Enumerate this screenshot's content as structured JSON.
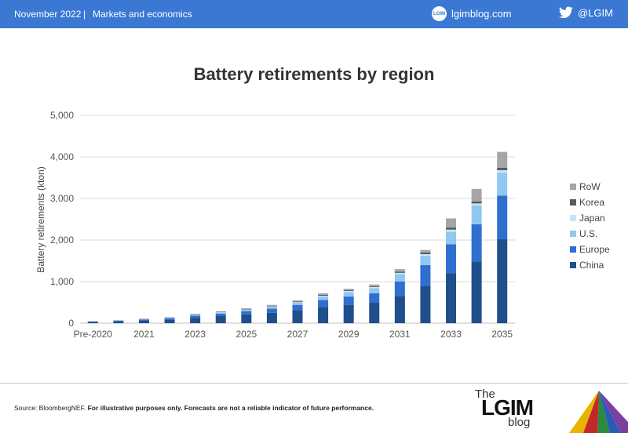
{
  "header": {
    "date": "November 2022",
    "separator": "|",
    "section": "Markets and economics",
    "blog_icon_text": "LGIM",
    "blog_url": "lgimblog.com",
    "twitter_handle": "@LGIM"
  },
  "footer": {
    "source": "Source: BloombergNEF.",
    "disclaimer": "For illustrative purposes only. Forecasts are not a reliable indicator of future performance."
  },
  "logo": {
    "the": "The",
    "lgim": "LGIM",
    "blog": "blog"
  },
  "colors": {
    "header_bg": "#3a78d4",
    "China": "#1f4e8c",
    "Europe": "#2e6fd0",
    "U.S.": "#8fc8f0",
    "Japan": "#c9e6f8",
    "Korea": "#595959",
    "RoW": "#a6a6a6"
  },
  "chart_data": {
    "type": "bar",
    "stacked": true,
    "title": "Battery retirements by region",
    "ylabel": "Battery retirements (kton)",
    "xlabel": "",
    "ylim": [
      0,
      5000
    ],
    "yticks": [
      0,
      1000,
      2000,
      3000,
      4000,
      5000
    ],
    "ytick_labels": [
      "0",
      "1,000",
      "2,000",
      "3,000",
      "4,000",
      "5,000"
    ],
    "grid": true,
    "legend_position": "right",
    "categories": [
      "Pre-2020",
      "2020",
      "2021",
      "2022",
      "2023",
      "2024",
      "2025",
      "2026",
      "2027",
      "2028",
      "2029",
      "2030",
      "2031",
      "2032",
      "2033",
      "2034",
      "2035"
    ],
    "x_tick_labels": [
      "Pre-2020",
      "",
      "2021",
      "",
      "2023",
      "",
      "2025",
      "",
      "2027",
      "",
      "2029",
      "",
      "2031",
      "",
      "2033",
      "",
      "2035"
    ],
    "series": [
      {
        "name": "China",
        "values": [
          30,
          50,
          70,
          90,
          130,
          170,
          210,
          250,
          310,
          390,
          440,
          490,
          650,
          900,
          1200,
          1480,
          2020
        ]
      },
      {
        "name": "Europe",
        "values": [
          10,
          10,
          20,
          30,
          50,
          60,
          80,
          100,
          130,
          170,
          200,
          230,
          350,
          500,
          700,
          900,
          1050
        ]
      },
      {
        "name": "U.S.",
        "values": [
          5,
          5,
          10,
          10,
          20,
          25,
          30,
          40,
          50,
          80,
          110,
          120,
          180,
          220,
          300,
          450,
          550
        ]
      },
      {
        "name": "Japan",
        "values": [
          2,
          3,
          5,
          5,
          8,
          10,
          10,
          12,
          15,
          20,
          25,
          30,
          30,
          40,
          50,
          50,
          60
        ]
      },
      {
        "name": "Korea",
        "values": [
          2,
          3,
          5,
          5,
          8,
          10,
          10,
          12,
          15,
          20,
          20,
          20,
          30,
          40,
          50,
          50,
          60
        ]
      },
      {
        "name": "RoW",
        "values": [
          1,
          4,
          5,
          5,
          9,
          10,
          20,
          26,
          30,
          40,
          35,
          40,
          60,
          60,
          220,
          300,
          380
        ]
      }
    ]
  }
}
